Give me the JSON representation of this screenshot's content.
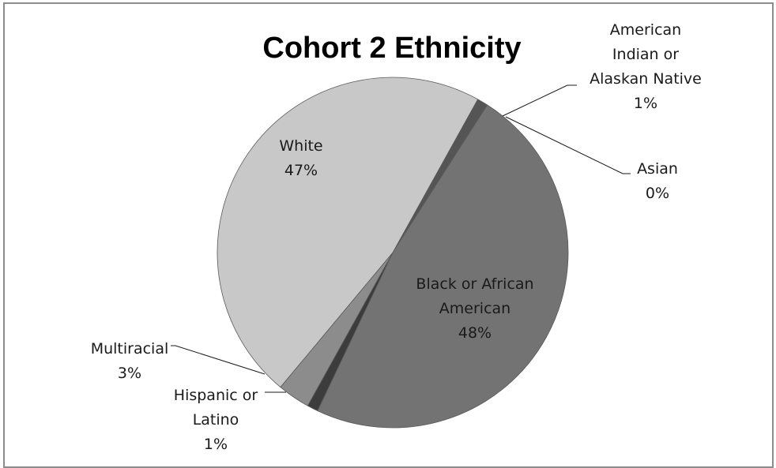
{
  "chart_data": {
    "type": "pie",
    "title": "Cohort 2 Ethnicity",
    "slices": [
      {
        "name": "American Indian or Alaskan Native",
        "label_lines": [
          "American",
          "Indian or",
          "Alaskan Native"
        ],
        "pct_label": "1%",
        "value": 1,
        "color": "#555555"
      },
      {
        "name": "Asian",
        "label_lines": [
          "Asian"
        ],
        "pct_label": "0%",
        "value": 0,
        "color": "#808080"
      },
      {
        "name": "Black or African American",
        "label_lines": [
          "Black or African",
          "American"
        ],
        "pct_label": "48%",
        "value": 48,
        "color": "#737373"
      },
      {
        "name": "Hispanic or Latino",
        "label_lines": [
          "Hispanic or",
          "Latino"
        ],
        "pct_label": "1%",
        "value": 1,
        "color": "#3c3c3c"
      },
      {
        "name": "Multiracial",
        "label_lines": [
          "Multiracial"
        ],
        "pct_label": "3%",
        "value": 3,
        "color": "#8c8c8c"
      },
      {
        "name": "White",
        "label_lines": [
          "White"
        ],
        "pct_label": "47%",
        "value": 47,
        "color": "#c8c8c8"
      }
    ],
    "legend": "none"
  }
}
